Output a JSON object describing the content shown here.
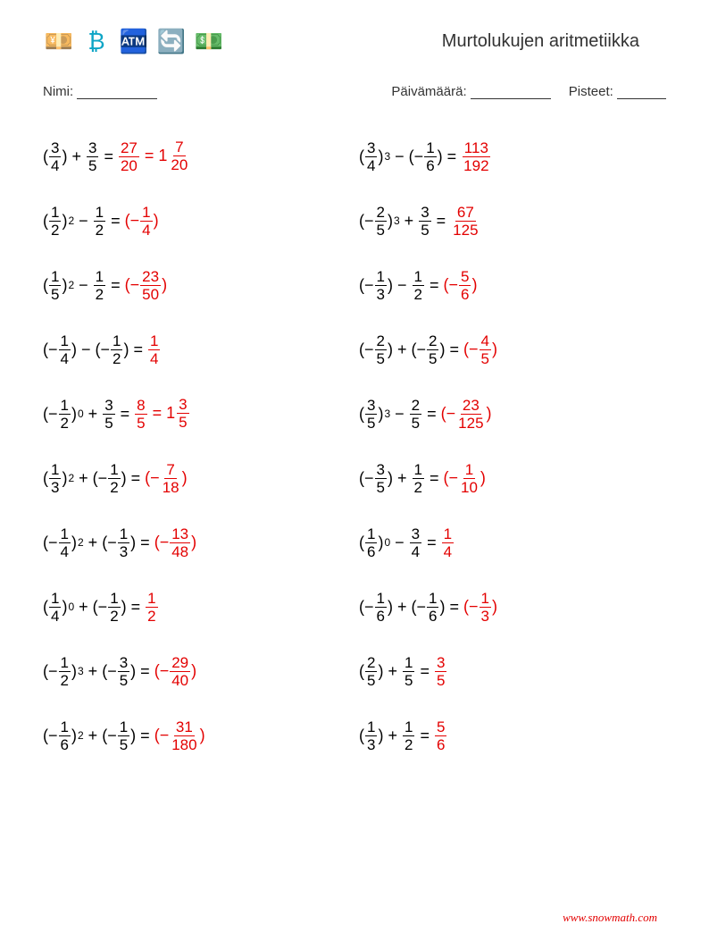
{
  "title": "Murtolukujen aritmetiikka",
  "labels": {
    "name": "Nimi:",
    "date": "Päivämäärä:",
    "score": "Pisteet:"
  },
  "colors": {
    "text": "#000000",
    "answer": "#e30000",
    "background": "#ffffff"
  },
  "footer": "www.snowmath.com",
  "icons": [
    {
      "name": "hand-money-icon",
      "glyph": "💴"
    },
    {
      "name": "bitcoin-icon",
      "glyph": "₿",
      "color": "#0ea5c6"
    },
    {
      "name": "atm-icon",
      "glyph": "🏧"
    },
    {
      "name": "exchange-coins-icon",
      "glyph": "🔄"
    },
    {
      "name": "hand-dollar-icon",
      "glyph": "💵"
    }
  ],
  "problems_left": [
    {
      "t1": {
        "neg": false,
        "n": "3",
        "d": "4",
        "exp": null
      },
      "op": "+",
      "t2": {
        "neg": false,
        "n": "3",
        "d": "5"
      },
      "ans": [
        {
          "type": "frac",
          "n": "27",
          "d": "20"
        },
        {
          "type": "eq"
        },
        {
          "type": "mixed",
          "w": "1",
          "n": "7",
          "d": "20"
        }
      ]
    },
    {
      "t1": {
        "neg": false,
        "n": "1",
        "d": "2",
        "exp": "2"
      },
      "op": "−",
      "t2": {
        "neg": false,
        "n": "1",
        "d": "2"
      },
      "ans": [
        {
          "type": "pfrac",
          "neg": true,
          "n": "1",
          "d": "4"
        }
      ]
    },
    {
      "t1": {
        "neg": false,
        "n": "1",
        "d": "5",
        "exp": "2"
      },
      "op": "−",
      "t2": {
        "neg": false,
        "n": "1",
        "d": "2"
      },
      "ans": [
        {
          "type": "pfrac",
          "neg": true,
          "n": "23",
          "d": "50"
        }
      ]
    },
    {
      "t1": {
        "neg": true,
        "n": "1",
        "d": "4",
        "exp": null
      },
      "op": "−",
      "t2": {
        "neg": true,
        "n": "1",
        "d": "2",
        "paren": true
      },
      "ans": [
        {
          "type": "frac",
          "n": "1",
          "d": "4"
        }
      ]
    },
    {
      "t1": {
        "neg": true,
        "n": "1",
        "d": "2",
        "exp": "0"
      },
      "op": "+",
      "t2": {
        "neg": false,
        "n": "3",
        "d": "5"
      },
      "ans": [
        {
          "type": "frac",
          "n": "8",
          "d": "5"
        },
        {
          "type": "eq"
        },
        {
          "type": "mixed",
          "w": "1",
          "n": "3",
          "d": "5"
        }
      ]
    },
    {
      "t1": {
        "neg": false,
        "n": "1",
        "d": "3",
        "exp": "2"
      },
      "op": "+",
      "t2": {
        "neg": true,
        "n": "1",
        "d": "2",
        "paren": true
      },
      "ans": [
        {
          "type": "pfrac",
          "neg": true,
          "n": "7",
          "d": "18"
        }
      ]
    },
    {
      "t1": {
        "neg": true,
        "n": "1",
        "d": "4",
        "exp": "2"
      },
      "op": "+",
      "t2": {
        "neg": true,
        "n": "1",
        "d": "3",
        "paren": true
      },
      "ans": [
        {
          "type": "pfrac",
          "neg": true,
          "n": "13",
          "d": "48"
        }
      ]
    },
    {
      "t1": {
        "neg": false,
        "n": "1",
        "d": "4",
        "exp": "0"
      },
      "op": "+",
      "t2": {
        "neg": true,
        "n": "1",
        "d": "2",
        "paren": true
      },
      "ans": [
        {
          "type": "frac",
          "n": "1",
          "d": "2"
        }
      ]
    },
    {
      "t1": {
        "neg": true,
        "n": "1",
        "d": "2",
        "exp": "3"
      },
      "op": "+",
      "t2": {
        "neg": true,
        "n": "3",
        "d": "5",
        "paren": true
      },
      "ans": [
        {
          "type": "pfrac",
          "neg": true,
          "n": "29",
          "d": "40"
        }
      ]
    },
    {
      "t1": {
        "neg": true,
        "n": "1",
        "d": "6",
        "exp": "2"
      },
      "op": "+",
      "t2": {
        "neg": true,
        "n": "1",
        "d": "5",
        "paren": true
      },
      "ans": [
        {
          "type": "pfrac",
          "neg": true,
          "n": "31",
          "d": "180"
        }
      ]
    }
  ],
  "problems_right": [
    {
      "t1": {
        "neg": false,
        "n": "3",
        "d": "4",
        "exp": "3"
      },
      "op": "−",
      "t2": {
        "neg": true,
        "n": "1",
        "d": "6",
        "paren": true
      },
      "ans": [
        {
          "type": "frac",
          "n": "113",
          "d": "192"
        }
      ]
    },
    {
      "t1": {
        "neg": true,
        "n": "2",
        "d": "5",
        "exp": "3"
      },
      "op": "+",
      "t2": {
        "neg": false,
        "n": "3",
        "d": "5"
      },
      "ans": [
        {
          "type": "frac",
          "n": "67",
          "d": "125"
        }
      ]
    },
    {
      "t1": {
        "neg": true,
        "n": "1",
        "d": "3",
        "exp": null
      },
      "op": "−",
      "t2": {
        "neg": false,
        "n": "1",
        "d": "2"
      },
      "ans": [
        {
          "type": "pfrac",
          "neg": true,
          "n": "5",
          "d": "6"
        }
      ]
    },
    {
      "t1": {
        "neg": true,
        "n": "2",
        "d": "5",
        "exp": null
      },
      "op": "+",
      "t2": {
        "neg": true,
        "n": "2",
        "d": "5",
        "paren": true
      },
      "ans": [
        {
          "type": "pfrac",
          "neg": true,
          "n": "4",
          "d": "5"
        }
      ]
    },
    {
      "t1": {
        "neg": false,
        "n": "3",
        "d": "5",
        "exp": "3"
      },
      "op": "−",
      "t2": {
        "neg": false,
        "n": "2",
        "d": "5"
      },
      "ans": [
        {
          "type": "pfrac",
          "neg": true,
          "n": "23",
          "d": "125"
        }
      ]
    },
    {
      "t1": {
        "neg": true,
        "n": "3",
        "d": "5",
        "exp": null
      },
      "op": "+",
      "t2": {
        "neg": false,
        "n": "1",
        "d": "2"
      },
      "ans": [
        {
          "type": "pfrac",
          "neg": true,
          "n": "1",
          "d": "10"
        }
      ]
    },
    {
      "t1": {
        "neg": false,
        "n": "1",
        "d": "6",
        "exp": "0"
      },
      "op": "−",
      "t2": {
        "neg": false,
        "n": "3",
        "d": "4"
      },
      "ans": [
        {
          "type": "frac",
          "n": "1",
          "d": "4"
        }
      ]
    },
    {
      "t1": {
        "neg": true,
        "n": "1",
        "d": "6",
        "exp": null
      },
      "op": "+",
      "t2": {
        "neg": true,
        "n": "1",
        "d": "6",
        "paren": true
      },
      "ans": [
        {
          "type": "pfrac",
          "neg": true,
          "n": "1",
          "d": "3"
        }
      ]
    },
    {
      "t1": {
        "neg": false,
        "n": "2",
        "d": "5",
        "exp": null
      },
      "op": "+",
      "t2": {
        "neg": false,
        "n": "1",
        "d": "5"
      },
      "ans": [
        {
          "type": "frac",
          "n": "3",
          "d": "5"
        }
      ]
    },
    {
      "t1": {
        "neg": false,
        "n": "1",
        "d": "3",
        "exp": null
      },
      "op": "+",
      "t2": {
        "neg": false,
        "n": "1",
        "d": "2"
      },
      "ans": [
        {
          "type": "frac",
          "n": "5",
          "d": "6"
        }
      ]
    }
  ]
}
